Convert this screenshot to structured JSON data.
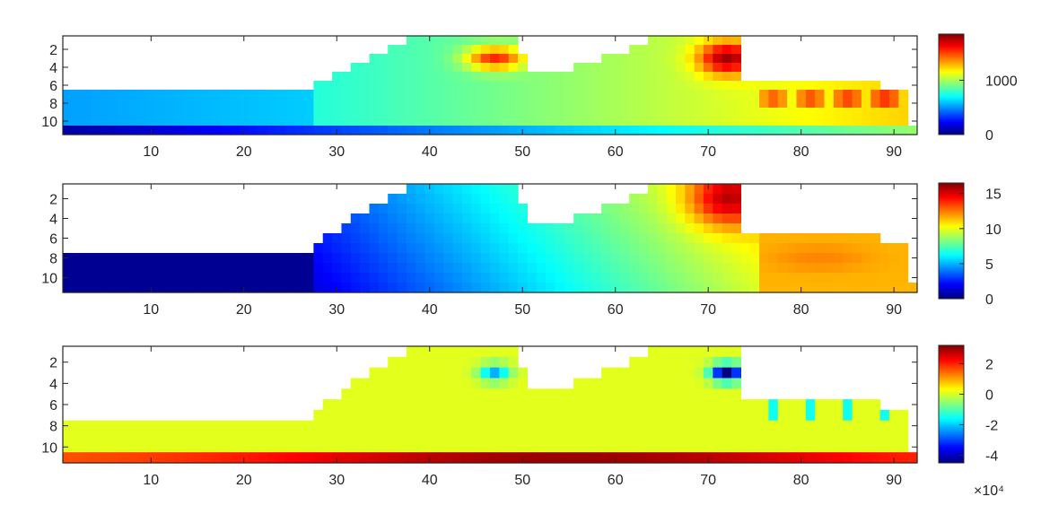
{
  "chart_data": [
    {
      "type": "heatmap",
      "title": "",
      "xlabel": "",
      "ylabel": "",
      "xlim": [
        1,
        92
      ],
      "ylim": [
        1,
        11
      ],
      "y_reversed": true,
      "xticks": [
        10,
        20,
        30,
        40,
        50,
        60,
        70,
        80,
        90
      ],
      "yticks": [
        2,
        4,
        6,
        8,
        10
      ],
      "colormap": "jet",
      "grid": false,
      "colorbar": {
        "range": [
          0,
          1850
        ],
        "ticks": [
          0,
          1000
        ],
        "exponent_label": ""
      },
      "profile": {
        "top_rows": [
          7,
          7,
          7,
          7,
          7,
          7,
          7,
          7,
          7,
          7,
          7,
          7,
          7,
          7,
          7,
          7,
          7,
          7,
          7,
          7,
          7,
          7,
          7,
          7,
          7,
          7,
          7,
          6,
          6,
          5,
          5,
          4,
          4,
          3,
          3,
          2,
          2,
          1,
          1,
          1,
          1,
          1,
          1,
          1,
          1,
          1,
          1,
          1,
          1,
          3,
          5,
          5,
          5,
          5,
          5,
          4,
          4,
          4,
          3,
          3,
          3,
          2,
          2,
          1,
          1,
          1,
          1,
          1,
          1,
          1,
          1,
          1,
          1,
          6,
          6,
          6,
          6,
          6,
          6,
          6,
          6,
          6,
          6,
          6,
          6,
          6,
          6,
          6,
          7,
          7,
          7
        ],
        "full_rows_11": true
      },
      "description_values": {
        "base_left": 600,
        "base_right": 1300,
        "hotspots": [
          {
            "x": 47,
            "y": 3,
            "v": 1700
          },
          {
            "x": 72,
            "y": 3,
            "v": 1850
          }
        ],
        "bottom_row_low": 50
      }
    },
    {
      "type": "heatmap",
      "title": "",
      "xlabel": "",
      "ylabel": "",
      "xlim": [
        1,
        92
      ],
      "ylim": [
        1,
        11
      ],
      "y_reversed": true,
      "xticks": [
        10,
        20,
        30,
        40,
        50,
        60,
        70,
        80,
        90
      ],
      "yticks": [
        2,
        4,
        6,
        8,
        10
      ],
      "colormap": "jet",
      "grid": false,
      "colorbar": {
        "range": [
          0,
          16.5
        ],
        "ticks": [
          0,
          5,
          10,
          15
        ],
        "exponent_label": ""
      },
      "profile": {
        "top_rows": [
          8,
          8,
          8,
          8,
          8,
          8,
          8,
          8,
          8,
          8,
          8,
          8,
          8,
          8,
          8,
          8,
          8,
          8,
          8,
          8,
          8,
          8,
          8,
          8,
          8,
          8,
          8,
          7,
          6,
          6,
          5,
          4,
          4,
          3,
          3,
          2,
          2,
          1,
          1,
          1,
          1,
          1,
          1,
          1,
          1,
          1,
          1,
          1,
          1,
          3,
          5,
          5,
          5,
          5,
          5,
          4,
          4,
          4,
          3,
          3,
          3,
          2,
          2,
          1,
          1,
          1,
          1,
          1,
          1,
          1,
          1,
          1,
          1,
          6,
          6,
          6,
          6,
          6,
          6,
          6,
          6,
          6,
          6,
          6,
          6,
          6,
          6,
          6,
          7,
          7,
          7
        ],
        "full_rows_11": false
      },
      "description_values": {
        "left_value": 0.2,
        "right_value": 12.5,
        "hotspots": [
          {
            "x": 72,
            "y": 2,
            "v": 16.5
          }
        ]
      }
    },
    {
      "type": "heatmap",
      "title": "",
      "xlabel": "",
      "ylabel": "",
      "xlim": [
        1,
        92
      ],
      "ylim": [
        1,
        11
      ],
      "y_reversed": true,
      "xticks": [
        10,
        20,
        30,
        40,
        50,
        60,
        70,
        80,
        90
      ],
      "yticks": [
        2,
        4,
        6,
        8,
        10
      ],
      "colormap": "jet",
      "grid": false,
      "colorbar": {
        "range": [
          -4.5,
          3.2
        ],
        "ticks": [
          -4,
          -2,
          0,
          2
        ],
        "exponent_label": "×10⁴"
      },
      "profile": {
        "top_rows": [
          8,
          8,
          8,
          8,
          8,
          8,
          8,
          8,
          8,
          8,
          8,
          8,
          8,
          8,
          8,
          8,
          8,
          8,
          8,
          8,
          8,
          8,
          8,
          8,
          8,
          8,
          8,
          7,
          6,
          6,
          5,
          4,
          4,
          3,
          3,
          2,
          2,
          1,
          1,
          1,
          1,
          1,
          1,
          1,
          1,
          1,
          1,
          1,
          1,
          3,
          5,
          5,
          5,
          5,
          5,
          4,
          4,
          4,
          3,
          3,
          3,
          2,
          2,
          1,
          1,
          1,
          1,
          1,
          1,
          1,
          1,
          1,
          1,
          6,
          6,
          6,
          6,
          6,
          6,
          6,
          6,
          6,
          6,
          6,
          6,
          6,
          6,
          6,
          7,
          7,
          7
        ],
        "full_rows_11": true
      },
      "description_values": {
        "background": 0.05,
        "bottom_row_peak": 3.0,
        "hotspots": [
          {
            "x": 47,
            "y": 3,
            "v": -2.2
          },
          {
            "x": 72,
            "y": 3,
            "v": -4.4
          }
        ]
      }
    }
  ]
}
